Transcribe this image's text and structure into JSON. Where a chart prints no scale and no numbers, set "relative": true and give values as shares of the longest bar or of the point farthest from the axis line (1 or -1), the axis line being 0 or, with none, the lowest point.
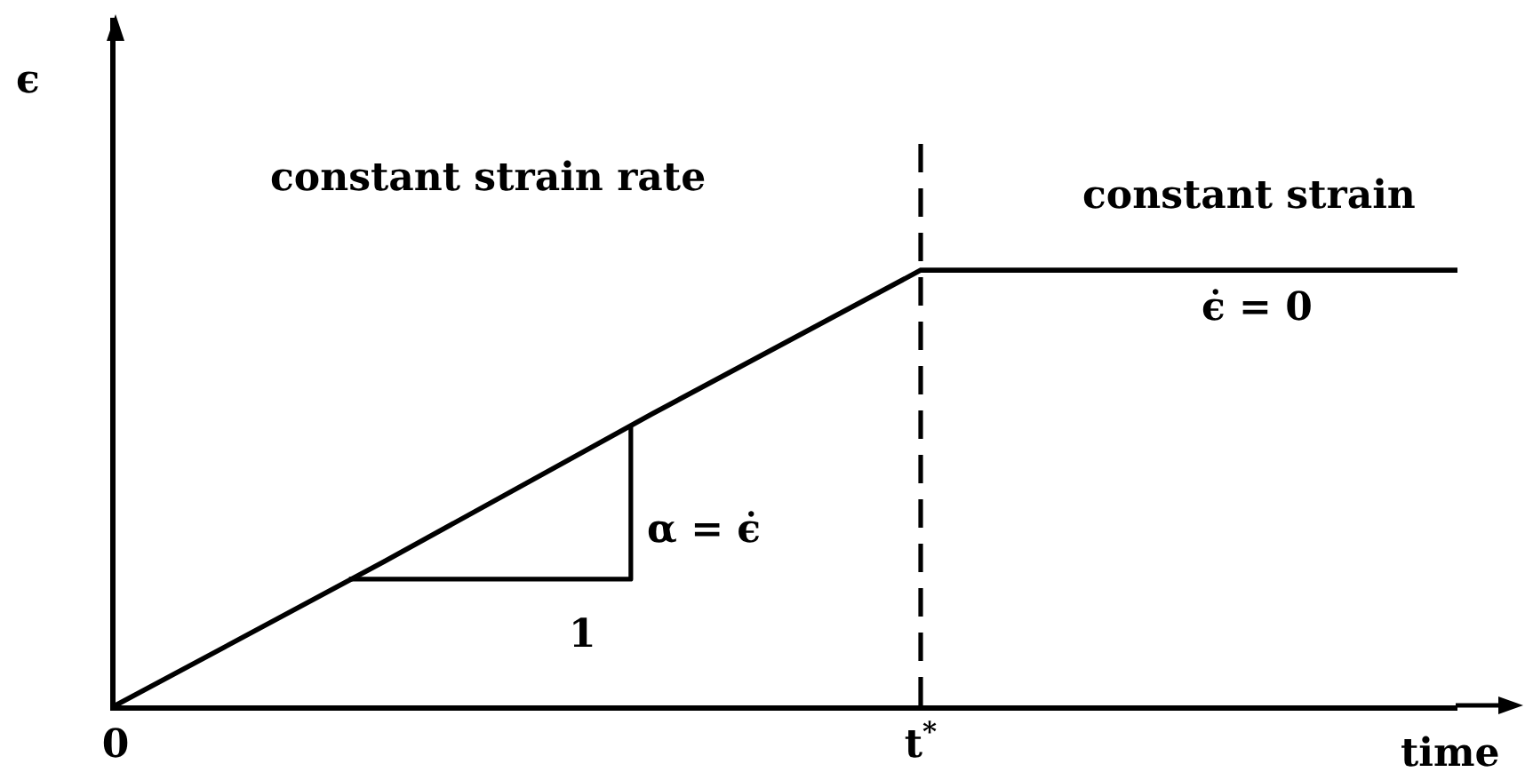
{
  "chart_data": {
    "type": "line",
    "relative": true,
    "tick_labels": "x",
    "xlabel": "time",
    "ylabel": "ϵ",
    "categories": [
      "0",
      null,
      null,
      "t$^{*}$",
      null,
      null
    ],
    "series": [
      {
        "color": "#000000",
        "values": [
          0,
          0.33,
          0.67,
          1,
          1,
          1
        ]
      }
    ],
    "ref_lines": [
      {
        "axis": "x",
        "value": "t$^{*}$",
        "color": "#000000",
        "line_style": "dashed"
      }
    ],
    "annotations": [
      "constant strain rate",
      "constant strain",
      "ϵ̇ = 0",
      "α = ϵ̇",
      "1"
    ]
  }
}
